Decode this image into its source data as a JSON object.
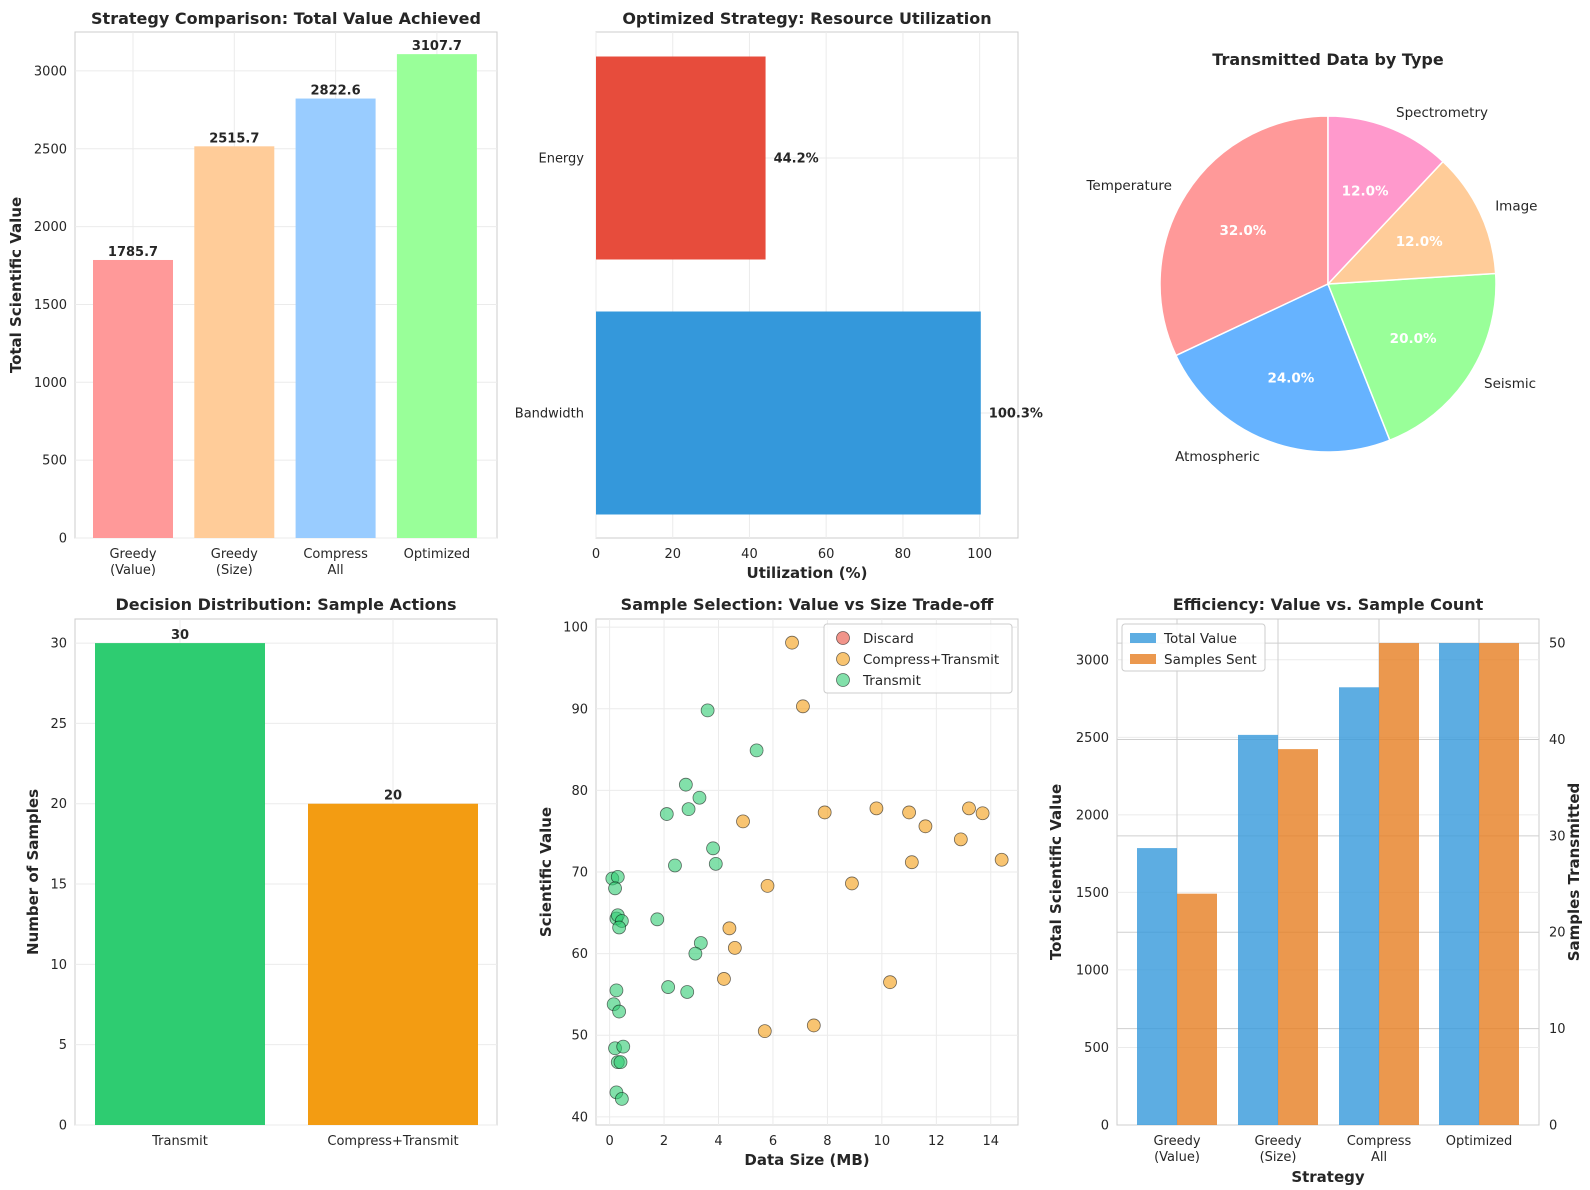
{
  "chart_data": [
    {
      "id": "p1",
      "type": "bar",
      "title": "Strategy Comparison: Total Value Achieved",
      "ylabel": "Total Scientific Value",
      "xlabel": "",
      "categories": [
        "Greedy\n(Value)",
        "Greedy\n(Size)",
        "Compress\nAll",
        "Optimized"
      ],
      "values": [
        1785.7,
        2515.7,
        2822.6,
        3107.7
      ],
      "value_labels": [
        "1785.7",
        "2515.7",
        "2822.6",
        "3107.7"
      ],
      "colors": [
        "#ff9999",
        "#ffcc99",
        "#99ccff",
        "#99ff99"
      ],
      "ylim": [
        0,
        3250
      ],
      "yticks": [
        0,
        500,
        1000,
        1500,
        2000,
        2500,
        3000
      ]
    },
    {
      "id": "p2",
      "type": "bar",
      "orientation": "horizontal",
      "title": "Optimized Strategy: Resource Utilization",
      "xlabel": "Utilization (%)",
      "categories": [
        "Energy",
        "Bandwidth"
      ],
      "values": [
        44.2,
        100.3
      ],
      "value_labels": [
        "44.2%",
        "100.3%"
      ],
      "colors": [
        "#e74c3c",
        "#3498db"
      ],
      "xlim": [
        0,
        110
      ],
      "xticks": [
        0,
        20,
        40,
        60,
        80,
        100
      ]
    },
    {
      "id": "p3",
      "type": "pie",
      "title": "Transmitted Data by Type",
      "labels": [
        "Temperature",
        "Atmospheric",
        "Seismic",
        "Image",
        "Spectrometry"
      ],
      "values": [
        32.0,
        24.0,
        20.0,
        12.0,
        12.0
      ],
      "pct_labels": [
        "32.0%",
        "24.0%",
        "20.0%",
        "12.0%",
        "12.0%"
      ],
      "colors": [
        "#ff9999",
        "#66b3ff",
        "#99ff99",
        "#ffcc99",
        "#ff99cc"
      ],
      "startangle": 90
    },
    {
      "id": "p4",
      "type": "bar",
      "title": "Decision Distribution: Sample Actions",
      "ylabel": "Number of Samples",
      "categories": [
        "Transmit",
        "Compress+Transmit"
      ],
      "values": [
        30,
        20
      ],
      "value_labels": [
        "30",
        "20"
      ],
      "colors": [
        "#2ecc71",
        "#f39c12"
      ],
      "ylim": [
        0,
        31.5
      ],
      "yticks": [
        0,
        5,
        10,
        15,
        20,
        25,
        30
      ]
    },
    {
      "id": "p5",
      "type": "scatter",
      "title": "Sample Selection: Value vs Size Trade-off",
      "xlabel": "Data Size (MB)",
      "ylabel": "Scientific Value",
      "xlim": [
        -0.5,
        15
      ],
      "ylim": [
        39,
        101
      ],
      "xticks": [
        0,
        2,
        4,
        6,
        8,
        10,
        12,
        14
      ],
      "yticks": [
        40,
        50,
        60,
        70,
        80,
        90,
        100
      ],
      "legend": [
        {
          "name": "Discard",
          "color": "#e74c3c"
        },
        {
          "name": "Compress+Transmit",
          "color": "#f39c12"
        },
        {
          "name": "Transmit",
          "color": "#2ecc71"
        }
      ],
      "series": [
        {
          "name": "Discard",
          "color": "#e74c3c",
          "points": []
        },
        {
          "name": "Compress+Transmit",
          "color": "#f39c12",
          "points": [
            [
              6.7,
              98.1
            ],
            [
              7.1,
              90.3
            ],
            [
              4.9,
              76.2
            ],
            [
              7.9,
              77.3
            ],
            [
              9.8,
              77.8
            ],
            [
              11.0,
              77.3
            ],
            [
              11.6,
              75.6
            ],
            [
              13.2,
              77.8
            ],
            [
              13.7,
              77.2
            ],
            [
              12.9,
              74.0
            ],
            [
              14.4,
              71.5
            ],
            [
              11.1,
              71.2
            ],
            [
              8.9,
              68.6
            ],
            [
              5.8,
              68.3
            ],
            [
              4.4,
              63.1
            ],
            [
              4.6,
              60.7
            ],
            [
              4.2,
              56.9
            ],
            [
              10.3,
              56.5
            ],
            [
              7.5,
              51.2
            ],
            [
              5.7,
              50.5
            ]
          ]
        },
        {
          "name": "Transmit",
          "color": "#2ecc71",
          "points": [
            [
              3.6,
              89.8
            ],
            [
              5.4,
              84.9
            ],
            [
              2.8,
              80.7
            ],
            [
              3.3,
              79.1
            ],
            [
              2.1,
              77.1
            ],
            [
              2.9,
              77.7
            ],
            [
              3.8,
              72.9
            ],
            [
              2.4,
              70.8
            ],
            [
              3.9,
              71.0
            ],
            [
              0.1,
              69.2
            ],
            [
              0.3,
              69.4
            ],
            [
              0.2,
              68.0
            ],
            [
              0.25,
              64.3
            ],
            [
              0.3,
              64.7
            ],
            [
              0.45,
              64.0
            ],
            [
              1.75,
              64.2
            ],
            [
              0.35,
              63.2
            ],
            [
              3.35,
              61.3
            ],
            [
              3.15,
              60.0
            ],
            [
              2.15,
              55.9
            ],
            [
              2.85,
              55.3
            ],
            [
              0.25,
              55.5
            ],
            [
              0.15,
              53.8
            ],
            [
              0.35,
              52.9
            ],
            [
              0.2,
              48.4
            ],
            [
              0.5,
              48.6
            ],
            [
              0.3,
              46.7
            ],
            [
              0.4,
              46.7
            ],
            [
              0.25,
              43.0
            ],
            [
              0.45,
              42.2
            ]
          ]
        }
      ]
    },
    {
      "id": "p6",
      "type": "bar",
      "title": "Efficiency: Value vs. Sample Count",
      "xlabel": "Strategy",
      "ylabel": "Total Scientific Value",
      "y2label": "Samples Transmitted",
      "categories": [
        "Greedy\n(Value)",
        "Greedy\n(Size)",
        "Compress\nAll",
        "Optimized"
      ],
      "series": [
        {
          "name": "Total Value",
          "axis": "left",
          "color": "#3498db",
          "values": [
            1785.7,
            2515.7,
            2822.6,
            3107.7
          ]
        },
        {
          "name": "Samples Sent",
          "axis": "right",
          "color": "#e67e22",
          "values": [
            24,
            39,
            50,
            50
          ]
        }
      ],
      "ylim": [
        0,
        3263
      ],
      "yticks": [
        0,
        500,
        1000,
        1500,
        2000,
        2500,
        3000
      ],
      "y2lim": [
        0,
        52.5
      ],
      "y2ticks": [
        0,
        10,
        20,
        30,
        40,
        50
      ],
      "left_axis_color": "#3498db",
      "right_axis_color": "#e67e22"
    }
  ]
}
